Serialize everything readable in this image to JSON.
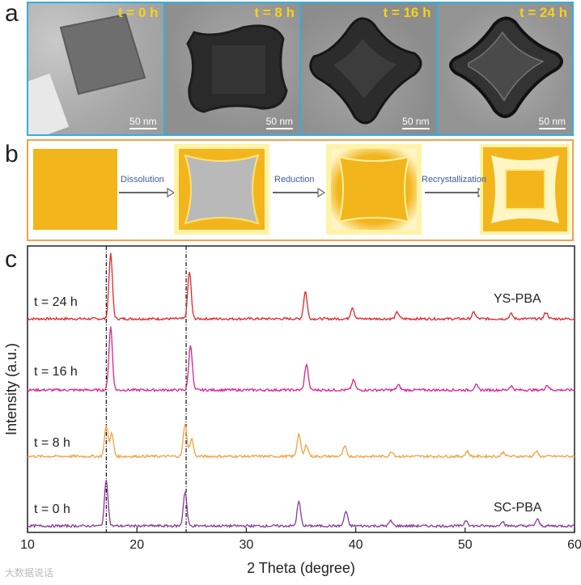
{
  "figure": {
    "panel_letters": [
      "a",
      "b",
      "c"
    ],
    "panel_a": {
      "time_labels": [
        "t = 0 h",
        "t = 8 h",
        "t = 16 h",
        "t = 24 h"
      ],
      "scale_bar": "50 nm"
    },
    "panel_b": {
      "steps": [
        "Dissolution",
        "Reduction",
        "Recrystallization"
      ]
    },
    "colors": {
      "border_a": "#33aee0",
      "border_b": "#f0a24a",
      "cube_yellow": "#f3b51c",
      "gray_core": "#b9b9b9"
    }
  },
  "watermark": "大数据说话",
  "chart_data": {
    "type": "line",
    "xlabel": "2 Theta (degree)",
    "ylabel": "Intensity (a.u.)",
    "xlim": [
      10,
      60
    ],
    "xticks": [
      10,
      20,
      30,
      40,
      50,
      60
    ],
    "reference_lines_x": [
      17.2,
      24.5
    ],
    "series": [
      {
        "name": "t = 24 h",
        "color": "#e0262c",
        "annotation": "YS-PBA",
        "peaks": [
          [
            17.6,
            80
          ],
          [
            24.8,
            58
          ],
          [
            35.4,
            34
          ],
          [
            39.7,
            14
          ],
          [
            43.8,
            8
          ],
          [
            50.8,
            8
          ],
          [
            54.2,
            6
          ],
          [
            57.4,
            8
          ]
        ]
      },
      {
        "name": "t = 16 h",
        "color": "#d9238f",
        "annotation": "",
        "peaks": [
          [
            17.6,
            78
          ],
          [
            24.9,
            56
          ],
          [
            35.5,
            32
          ],
          [
            39.8,
            12
          ],
          [
            43.9,
            6
          ],
          [
            51.0,
            6
          ],
          [
            54.2,
            5
          ],
          [
            57.5,
            6
          ]
        ]
      },
      {
        "name": "t = 8 h",
        "color": "#f5a040",
        "annotation": "",
        "peaks": [
          [
            17.2,
            38
          ],
          [
            17.7,
            28
          ],
          [
            24.4,
            40
          ],
          [
            25.0,
            22
          ],
          [
            34.8,
            28
          ],
          [
            35.5,
            14
          ],
          [
            39.0,
            12
          ],
          [
            43.3,
            6
          ],
          [
            50.2,
            6
          ],
          [
            53.5,
            5
          ],
          [
            56.5,
            6
          ]
        ]
      },
      {
        "name": "t = 0 h",
        "color": "#8a3a9a",
        "annotation": "SC-PBA",
        "peaks": [
          [
            17.2,
            58
          ],
          [
            24.4,
            42
          ],
          [
            34.8,
            30
          ],
          [
            39.1,
            18
          ],
          [
            43.2,
            6
          ],
          [
            50.1,
            7
          ],
          [
            53.4,
            6
          ],
          [
            56.6,
            8
          ]
        ]
      }
    ]
  }
}
